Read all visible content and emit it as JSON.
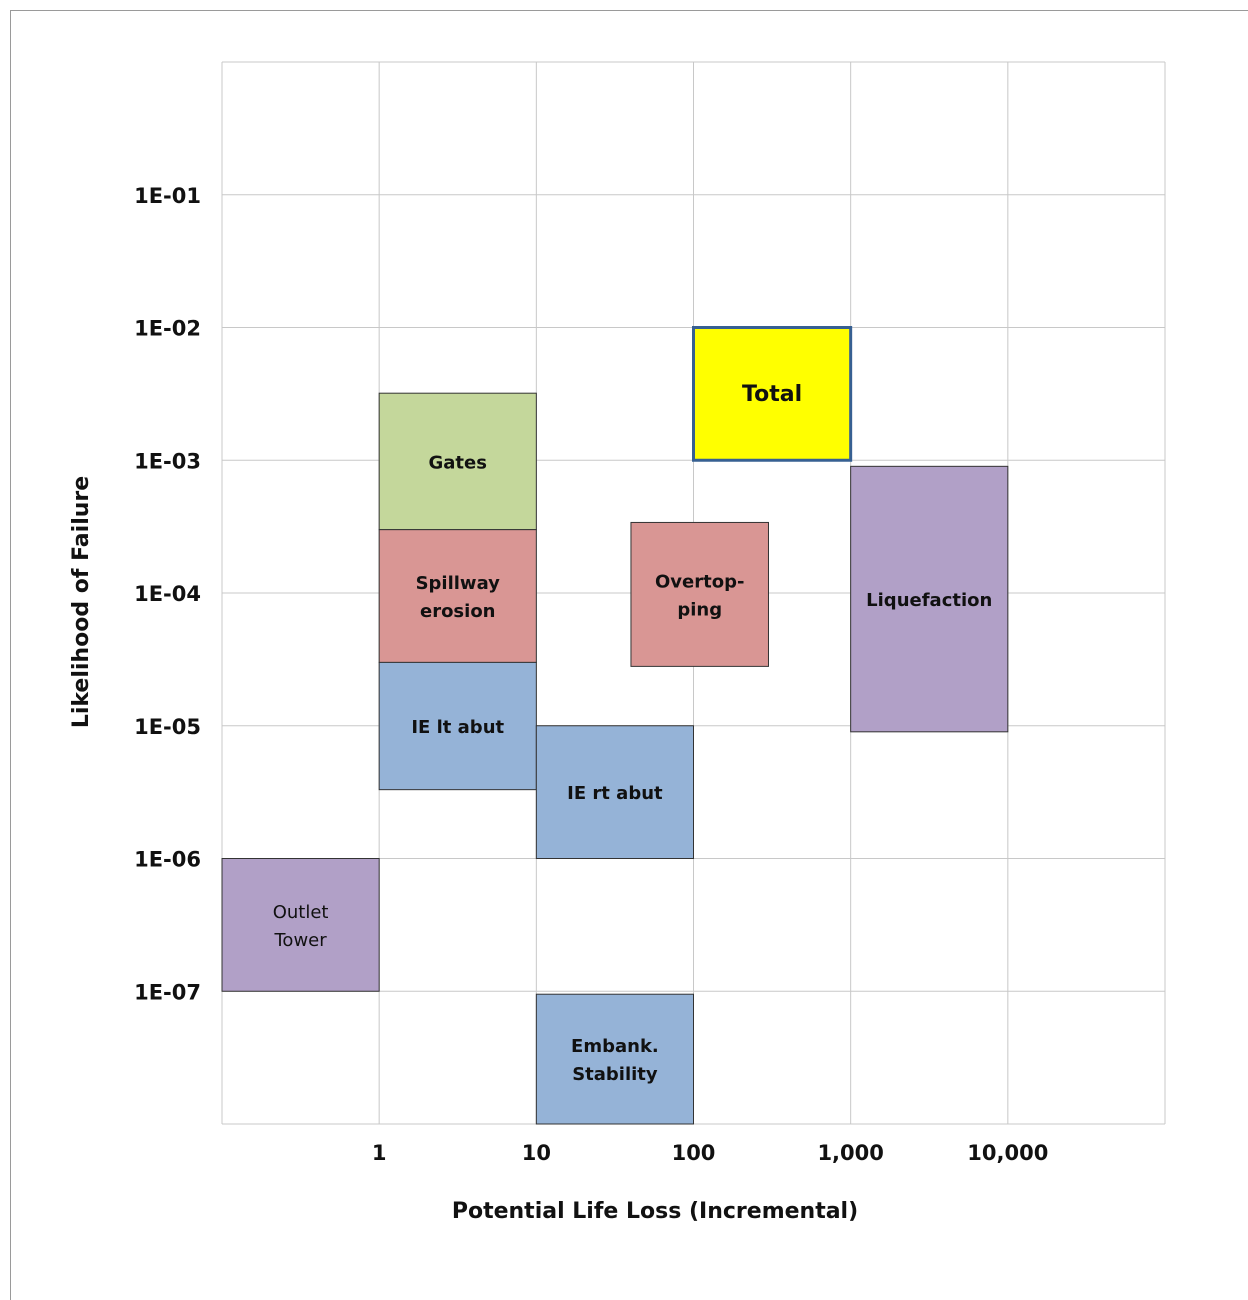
{
  "chart_data": {
    "type": "risk-matrix",
    "xlabel": "Potential Life Loss (Incremental)",
    "ylabel": "Likelihood of Failure",
    "x_scale": "log",
    "y_scale": "log",
    "x_range": [
      0.1,
      100000
    ],
    "y_range": [
      1e-08,
      1
    ],
    "x_ticks": [
      {
        "value": 1,
        "label": "1"
      },
      {
        "value": 10,
        "label": "10"
      },
      {
        "value": 100,
        "label": "100"
      },
      {
        "value": 1000,
        "label": "1,000"
      },
      {
        "value": 10000,
        "label": "10,000"
      }
    ],
    "y_ticks": [
      {
        "value": 0.1,
        "label": "1E-01"
      },
      {
        "value": 0.01,
        "label": "1E-02"
      },
      {
        "value": 0.001,
        "label": "1E-03"
      },
      {
        "value": 0.0001,
        "label": "1E-04"
      },
      {
        "value": 1e-05,
        "label": "1E-05"
      },
      {
        "value": 1e-06,
        "label": "1E-06"
      },
      {
        "value": 1e-07,
        "label": "1E-07"
      }
    ],
    "grid": true,
    "failure_modes": [
      {
        "name": "Gates",
        "lines": [
          "Gates"
        ],
        "x_range": [
          1,
          10
        ],
        "y_range": [
          0.0003,
          0.0032
        ],
        "color": "#c4d79b",
        "bold": true
      },
      {
        "name": "Spillway erosion",
        "lines": [
          "Spillway",
          "erosion"
        ],
        "x_range": [
          1,
          10
        ],
        "y_range": [
          3e-05,
          0.0003
        ],
        "color": "#d99694",
        "bold": true
      },
      {
        "name": "IE lt abut",
        "lines": [
          "IE  lt abut"
        ],
        "x_range": [
          1,
          10
        ],
        "y_range": [
          3.3e-06,
          3e-05
        ],
        "color": "#95b3d7",
        "bold": true
      },
      {
        "name": "IE rt abut",
        "lines": [
          "IE rt abut"
        ],
        "x_range": [
          10,
          100
        ],
        "y_range": [
          1e-06,
          1e-05
        ],
        "color": "#95b3d7",
        "bold": true
      },
      {
        "name": "Overtopping",
        "lines": [
          "Overtop-",
          "ping"
        ],
        "x_range": [
          40,
          300
        ],
        "y_range": [
          2.8e-05,
          0.00034
        ],
        "color": "#d99694",
        "bold": true
      },
      {
        "name": "Total",
        "lines": [
          "Total"
        ],
        "x_range": [
          100,
          1000
        ],
        "y_range": [
          0.001,
          0.01
        ],
        "color": "#ffff00",
        "stroke": "#376092",
        "bold": true,
        "big": true
      },
      {
        "name": "Liquefaction",
        "lines": [
          "Liquefaction"
        ],
        "x_range": [
          1000,
          10000
        ],
        "y_range": [
          9e-06,
          0.0009
        ],
        "color": "#b1a0c7",
        "bold": true
      },
      {
        "name": "Outlet Tower",
        "lines": [
          "Outlet",
          "Tower"
        ],
        "x_range": [
          0.1,
          1
        ],
        "y_range": [
          1e-07,
          1e-06
        ],
        "color": "#b1a0c7",
        "bold": false
      },
      {
        "name": "Embank. Stability",
        "lines": [
          "Embank.",
          "Stability"
        ],
        "x_range": [
          10,
          100
        ],
        "y_range": [
          1e-08,
          9.5e-08
        ],
        "color": "#95b3d7",
        "bold": true
      }
    ]
  }
}
